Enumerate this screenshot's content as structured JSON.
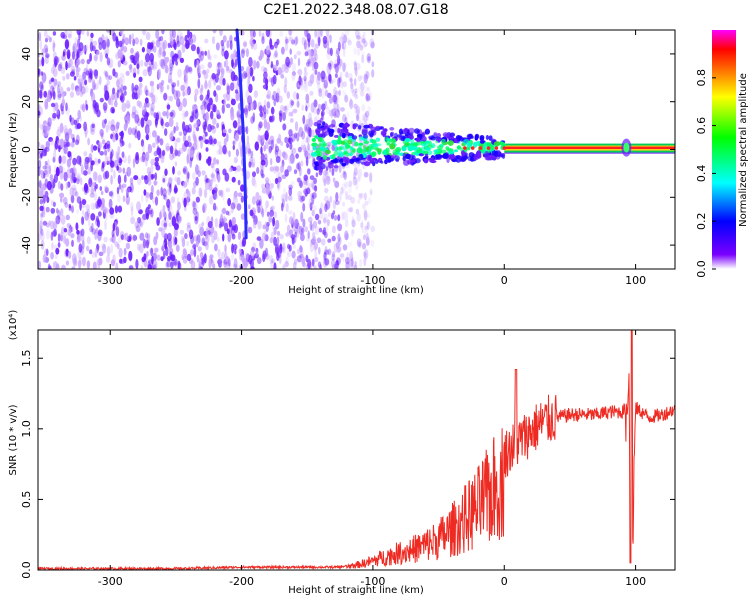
{
  "title": "C2E1.2022.348.08.07.G18",
  "colors": {
    "signal": "#6a1bff",
    "snr_line": "#ee2a22",
    "frame": "#000000"
  },
  "chart_data": [
    {
      "type": "heatmap",
      "xlabel": "Height of straight line (km)",
      "ylabel": "Frequency (Hz)",
      "xlim": [
        -355,
        130
      ],
      "ylim": [
        -50,
        50
      ],
      "xticks": [
        -300,
        -200,
        -100,
        0,
        100
      ],
      "yticks": [
        -40,
        -20,
        0,
        20,
        40
      ],
      "colorbar": {
        "label": "Normalized spectral amplitude",
        "range": [
          0.0,
          1.0
        ],
        "ticks": [
          "0.0",
          "0.2",
          "0.4",
          "0.6",
          "0.8"
        ],
        "colormap": [
          "#ffffff",
          "#7a00ff",
          "#0000ff",
          "#00ffff",
          "#00ff00",
          "#ffff00",
          "#ff8000",
          "#ff0000",
          "#ff00ff"
        ]
      },
      "features": {
        "noise_region_x": [
          -355,
          -125
        ],
        "noise_fade_x": [
          -125,
          -100
        ],
        "streak": {
          "x": [
            -205,
            -195
          ],
          "freq": [
            50,
            -37
          ]
        },
        "signal_line": {
          "x": [
            0,
            130
          ],
          "freq": 0.8
        },
        "signal_blob_x": [
          -145,
          0
        ],
        "spike_x": 93
      }
    },
    {
      "type": "line",
      "xlabel": "Height of straight line (km)",
      "ylabel": "SNR (10 * v/v)",
      "y_multiplier": "(x10⁴)",
      "xlim": [
        -355,
        130
      ],
      "ylim": [
        0.0,
        1.7
      ],
      "xticks": [
        -300,
        -200,
        -100,
        0,
        100
      ],
      "yticks": [
        "0.0",
        "0.5",
        "1.0",
        "1.5"
      ],
      "series": [
        {
          "x": [
            -355,
            -300,
            -250,
            -200,
            -150,
            -125,
            -110,
            -100,
            -90,
            -80,
            -70,
            -60,
            -50,
            -40,
            -30,
            -20,
            -10,
            0,
            10,
            20,
            30,
            40,
            50,
            60,
            70,
            80,
            90,
            92,
            95,
            97,
            100,
            110,
            120,
            130
          ],
          "y": [
            0.01,
            0.01,
            0.01,
            0.02,
            0.02,
            0.02,
            0.05,
            0.08,
            0.12,
            0.15,
            0.18,
            0.22,
            0.27,
            0.35,
            0.45,
            0.55,
            0.68,
            0.82,
            0.9,
            0.98,
            1.05,
            1.08,
            1.1,
            1.1,
            1.1,
            1.12,
            1.12,
            1.15,
            1.5,
            0.05,
            1.15,
            1.08,
            1.1,
            1.14
          ]
        }
      ]
    }
  ]
}
